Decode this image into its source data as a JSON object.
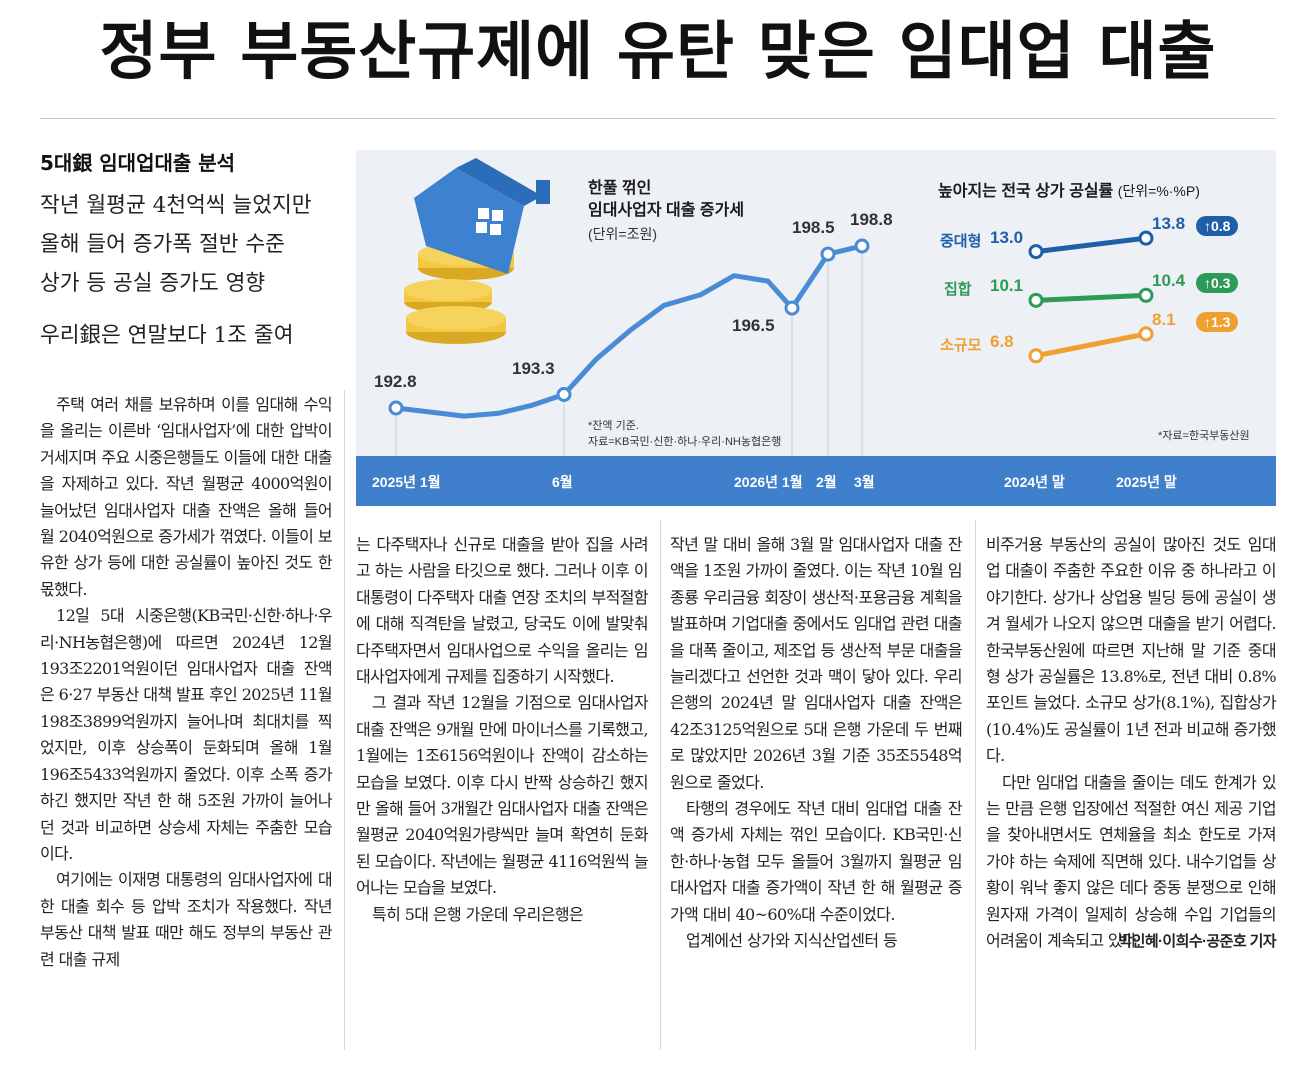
{
  "headline": "정부 부동산규제에 유탄 맞은 임대업 대출",
  "kicker": "5대銀 임대업대출 분석",
  "deck": [
    "작년 월평균 4천억씩 늘었지만",
    "올해 들어 증가폭 절반 수준",
    "상가 등 공실 증가도 영향"
  ],
  "deck2": "우리銀은 연말보다 1조 줄여",
  "chart_data": [
    {
      "type": "line",
      "title": "한풀 꺾인 임대사업자 대출 증가세",
      "unit": "(단위=조원)",
      "x": [
        "2025년 1월",
        "6월",
        "2026년 1월",
        "2월",
        "3월"
      ],
      "values": [
        192.8,
        193.3,
        196.5,
        198.5,
        198.8
      ],
      "note": [
        "*잔액 기준.",
        "자료=KB국민·신한·하나·우리·NH농협은행"
      ]
    },
    {
      "type": "line",
      "title": "높아지는 전국 상가 공실률",
      "unit": "(단위=%·%P)",
      "x": [
        "2024년 말",
        "2025년 말"
      ],
      "series": [
        {
          "name": "중대형",
          "values": [
            13.0,
            13.8
          ],
          "change": "↑0.8",
          "color": "#1f5fa8"
        },
        {
          "name": "집합",
          "values": [
            10.1,
            10.4
          ],
          "change": "↑0.3",
          "color": "#2e9a58"
        },
        {
          "name": "소규모",
          "values": [
            6.8,
            8.1
          ],
          "change": "↑1.3",
          "color": "#f0a030"
        }
      ],
      "source": "*자료=한국부동산원"
    }
  ],
  "body": {
    "col1": [
      "주택 여러 채를 보유하며 이를 임대해 수익을 올리는 이른바 ‘임대사업자’에 대한 압박이 거세지며 주요 시중은행들도 이들에 대한 대출을 자제하고 있다. 작년 월평균 4000억원이 늘어났던 임대사업자 대출 잔액은 올해 들어 월 2040억원으로 증가세가 꺾였다. 이들이 보유한 상가 등에 대한 공실률이 높아진 것도 한몫했다.",
      "12일 5대 시중은행(KB국민·신한·하나·우리·NH농협은행)에 따르면 2024년 12월 193조2201억원이던 임대사업자 대출 잔액은 6·27 부동산 대책 발표 후인 2025년 11월 198조3899억원까지 늘어나며 최대치를 찍었지만, 이후 상승폭이 둔화되며 올해 1월 196조5433억원까지 줄었다. 이후 소폭 증가하긴 했지만 작년 한 해 5조원 가까이 늘어나던 것과 비교하면 상승세 자체는 주춤한 모습이다.",
      "여기에는 이재명 대통령의 임대사업자에 대한 대출 회수 등 압박 조치가 작용했다. 작년 부동산 대책 발표 때만 해도 정부의 부동산 관련 대출 규제"
    ],
    "col2": [
      "는 다주택자나 신규로 대출을 받아 집을 사려고 하는 사람을 타깃으로 했다. 그러나 이후 이 대통령이 다주택자 대출 연장 조치의 부적절함에 대해 직격탄을 날렸고, 당국도 이에 발맞춰 다주택자면서 임대사업으로 수익을 올리는 임대사업자에게 규제를 집중하기 시작했다.",
      "그 결과 작년 12월을 기점으로 임대사업자 대출 잔액은 9개월 만에 마이너스를 기록했고, 1월에는 1조6156억원이나 잔액이 감소하는 모습을 보였다. 이후 다시 반짝 상승하긴 했지만 올해 들어 3개월간 임대사업자 대출 잔액은 월평균 2040억원가량씩만 늘며 확연히 둔화된 모습이다. 작년에는 월평균 4116억원씩 늘어나는 모습을 보였다.",
      "특히 5대 은행 가운데 우리은행은"
    ],
    "col3": [
      "작년 말 대비 올해 3월 말 임대사업자 대출 잔액을 1조원 가까이 줄였다. 이는 작년 10월 임종룡 우리금융 회장이 생산적·포용금융 계획을 발표하며 기업대출 중에서도 임대업 관련 대출을 대폭 줄이고, 제조업 등 생산적 부문 대출을 늘리겠다고 선언한 것과 맥이 닿아 있다. 우리은행의 2024년 말 임대사업자 대출 잔액은 42조3125억원으로 5대 은행 가운데 두 번째로 많았지만 2026년 3월 기준 35조5548억원으로 줄었다.",
      "타행의 경우에도 작년 대비 임대업 대출 잔액 증가세 자체는 꺾인 모습이다. KB국민·신한·하나·농협 모두 올들어 3월까지 월평균 임대사업자 대출 증가액이 작년 한 해 월평균 증가액 대비 40~60%대 수준이었다.",
      "업계에선 상가와 지식산업센터 등"
    ],
    "col4": [
      "비주거용 부동산의 공실이 많아진 것도 임대업 대출이 주춤한 주요한 이유 중 하나라고 이야기한다. 상가나 상업용 빌딩 등에 공실이 생겨 월세가 나오지 않으면 대출을 받기 어렵다. 한국부동산원에 따르면 지난해 말 기준 중대형 상가 공실률은 13.8%로, 전년 대비 0.8%포인트 늘었다. 소규모 상가(8.1%), 집합상가(10.4%)도 공실률이 1년 전과 비교해 증가했다.",
      "다만 임대업 대출을 줄이는 데도 한계가 있는 만큼 은행 입장에선 적절한 여신 제공 기업을 찾아내면서도 연체율을 최소 한도로 가져가야 하는 숙제에 직면해 있다. 내수기업들 상황이 워낙 좋지 않은 데다 중동 분쟁으로 인해 원자재 가격이 일제히 상승해 수입 기업들의 어려움이 계속되고 있다."
    ],
    "byline": "박인혜·이희수·공준호 기자"
  }
}
